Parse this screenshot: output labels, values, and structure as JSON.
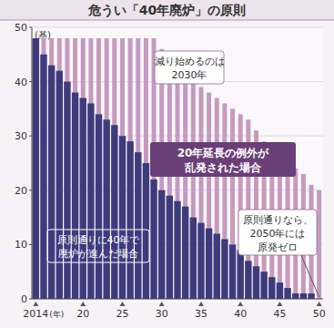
{
  "chart_data": {
    "type": "bar",
    "title": "危うい「40年廃炉」の原則",
    "x_label": "(年)",
    "y_label": "(基)",
    "x": [
      2014,
      2015,
      2016,
      2017,
      2018,
      2019,
      2020,
      2021,
      2022,
      2023,
      2024,
      2025,
      2026,
      2027,
      2028,
      2029,
      2030,
      2031,
      2032,
      2033,
      2034,
      2035,
      2036,
      2037,
      2038,
      2039,
      2040,
      2041,
      2042,
      2043,
      2044,
      2045,
      2046,
      2047,
      2048,
      2049,
      2050
    ],
    "series": [
      {
        "name": "20年延長の例外が乱発された場合",
        "color": "#c69ac0",
        "values": [
          48,
          48,
          48,
          48,
          48,
          48,
          48,
          48,
          48,
          48,
          48,
          48,
          48,
          48,
          48,
          48,
          46,
          44,
          43,
          42,
          41,
          39,
          38,
          37,
          36,
          35,
          34,
          33,
          31,
          29,
          27,
          26,
          25,
          24,
          23,
          21,
          20
        ]
      },
      {
        "name": "原則通りに40年で廃炉が進んだ場合",
        "color": "#3e3b7d",
        "values": [
          48,
          45,
          43,
          42,
          40,
          38,
          37,
          36,
          34,
          33,
          32,
          30,
          29,
          27,
          25,
          22,
          20,
          19,
          18,
          17,
          15,
          14,
          13,
          12,
          11,
          10,
          9,
          7,
          6,
          5,
          4,
          3,
          2,
          1,
          1,
          1,
          0
        ]
      }
    ],
    "xlim": [
      2013.5,
      2050.5
    ],
    "xticks": [
      2014,
      {
        "value": 2020,
        "label": "20"
      },
      {
        "value": 2025,
        "label": "25"
      },
      {
        "value": 2030,
        "label": "30"
      },
      {
        "value": 2035,
        "label": "35"
      },
      {
        "value": 2040,
        "label": "40"
      },
      {
        "value": 2045,
        "label": "45"
      },
      {
        "value": 2050,
        "label": "50"
      }
    ],
    "ylim": [
      0,
      50
    ],
    "yticks": [
      0,
      10,
      20,
      30,
      40,
      50
    ],
    "grid": true,
    "stacked": false,
    "annotations": [
      [
        "減り始めるのは",
        "2030年"
      ],
      [
        "原則通りなら、",
        "2050年には",
        "原発ゼロ"
      ]
    ]
  }
}
